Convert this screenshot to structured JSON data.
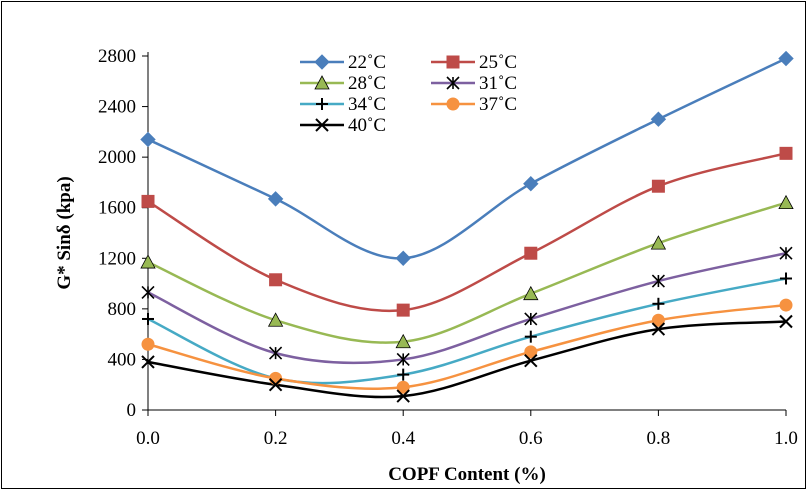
{
  "chart_data": {
    "type": "line",
    "title": "",
    "xlabel": "COPF Content (%)",
    "ylabel": "G* Sinδ (kpa)",
    "x": [
      0.0,
      0.2,
      0.4,
      0.6,
      0.8,
      1.0
    ],
    "x_tick_labels": [
      "0.0",
      "0.2",
      "0.4",
      "0.6",
      "0.8",
      "1.0"
    ],
    "y_ticks": [
      0,
      400,
      800,
      1200,
      1600,
      2000,
      2400,
      2800
    ],
    "xlim": [
      0,
      1
    ],
    "ylim": [
      0,
      2800
    ],
    "grid": false,
    "legend_position": "top-center",
    "series": [
      {
        "name": "22˚C",
        "color": "#4a7ebb",
        "marker": "diamond",
        "values": [
          2140,
          1670,
          1200,
          1790,
          2300,
          2780
        ]
      },
      {
        "name": "25˚C",
        "color": "#be4b48",
        "marker": "square",
        "values": [
          1650,
          1030,
          790,
          1240,
          1770,
          2030
        ]
      },
      {
        "name": "28˚C",
        "color": "#98b954",
        "marker": "triangle",
        "values": [
          1170,
          710,
          540,
          920,
          1320,
          1640
        ]
      },
      {
        "name": "31˚C",
        "color": "#7d60a0",
        "marker": "asterisk",
        "values": [
          930,
          450,
          400,
          720,
          1020,
          1240
        ]
      },
      {
        "name": "34˚C",
        "color": "#46aac5",
        "marker": "plus",
        "values": [
          720,
          250,
          280,
          580,
          840,
          1040
        ]
      },
      {
        "name": "37˚C",
        "color": "#f69240",
        "marker": "circle",
        "values": [
          520,
          250,
          180,
          460,
          710,
          830
        ]
      },
      {
        "name": "40˚C",
        "color": "#000000",
        "marker": "x",
        "values": [
          380,
          200,
          110,
          390,
          640,
          700
        ]
      }
    ]
  }
}
